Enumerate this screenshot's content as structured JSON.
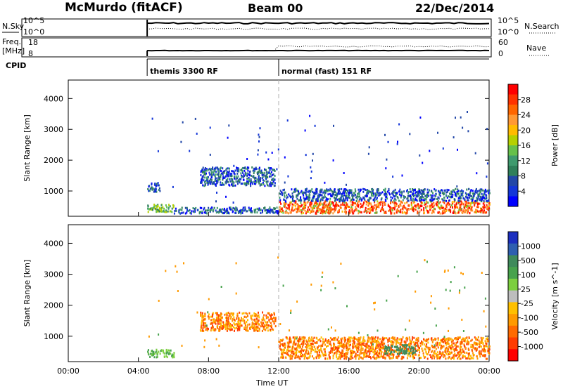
{
  "header": {
    "station": "McMurdo (fitACF)",
    "beam": "Beam 00",
    "date": "22/Dec/2014"
  },
  "top_panels": {
    "nsky_label": "N.Sky",
    "nsky_ticks": [
      "10^5",
      "10^0"
    ],
    "nsearch_label": "N.Search",
    "nsearch_ticks": [
      "10^5",
      "10^0"
    ],
    "freq_label": "Freq.",
    "freq_unit": "[MHz]",
    "freq_ticks": [
      "18",
      "8"
    ],
    "nave_label": "Nave",
    "nave_ticks": [
      "60",
      "0"
    ],
    "cpid_label": "CPID",
    "cpid_segments": [
      {
        "start_hour": 4.5,
        "name": "themis 3300 RF"
      },
      {
        "start_hour": 12.0,
        "name": "normal (fast) 151 RF"
      }
    ]
  },
  "chart_data": [
    {
      "type": "heatmap",
      "title": "",
      "xlabel": "Time UT",
      "ylabel": "Slant Range [km]",
      "x_range_hours": [
        0,
        24
      ],
      "x_ticks": [
        "00:00",
        "04:00",
        "08:00",
        "12:00",
        "16:00",
        "20:00",
        "00:00"
      ],
      "y_range_km": [
        180,
        4600
      ],
      "y_ticks": [
        "1000",
        "2000",
        "3000",
        "4000"
      ],
      "colorbar": {
        "label": "Power [dB]",
        "ticks": [
          "28",
          "24",
          "20",
          "16",
          "12",
          "8",
          "4"
        ],
        "colors": [
          "#ff0000",
          "#ff3300",
          "#ff6600",
          "#ff9933",
          "#ffbb00",
          "#b5d000",
          "#66c04a",
          "#3f9a6e",
          "#2f7f5a",
          "#2247a8",
          "#1436d8",
          "#0000ff"
        ]
      },
      "regions": [
        {
          "t0": 4.5,
          "t1": 6.0,
          "r0": 350,
          "r1": 600,
          "level": "mid"
        },
        {
          "t0": 4.5,
          "t1": 5.2,
          "r0": 1000,
          "r1": 1300,
          "level": "low"
        },
        {
          "t0": 7.5,
          "t1": 11.8,
          "r0": 1200,
          "r1": 1800,
          "level": "low"
        },
        {
          "t0": 6.0,
          "t1": 12.0,
          "r0": 300,
          "r1": 500,
          "level": "low"
        },
        {
          "t0": 12.0,
          "t1": 24.0,
          "r0": 300,
          "r1": 700,
          "level": "high"
        },
        {
          "t0": 12.0,
          "t1": 24.0,
          "r0": 700,
          "r1": 1100,
          "level": "low"
        }
      ]
    },
    {
      "type": "heatmap",
      "title": "",
      "xlabel": "Time UT",
      "ylabel": "Slant Range [km]",
      "x_range_hours": [
        0,
        24
      ],
      "x_ticks": [
        "00:00",
        "04:00",
        "08:00",
        "12:00",
        "16:00",
        "20:00",
        "00:00"
      ],
      "y_range_km": [
        180,
        4600
      ],
      "y_ticks": [
        "1000",
        "2000",
        "3000",
        "4000"
      ],
      "colorbar": {
        "label": "Velocity [m s^-1]",
        "ticks": [
          "1000",
          "500",
          "100",
          "25",
          "-25",
          "-100",
          "-500",
          "-1000"
        ],
        "colors": [
          "#1c2fbf",
          "#2e5fb0",
          "#3f8a5b",
          "#47a24c",
          "#7ccf3f",
          "#bdbdbd",
          "#ffc000",
          "#ff9a00",
          "#ff6a00",
          "#ff3c00",
          "#ff0000"
        ]
      },
      "regions": [
        {
          "t0": 4.5,
          "t1": 6.0,
          "r0": 350,
          "r1": 600,
          "level": "green"
        },
        {
          "t0": 7.5,
          "t1": 11.8,
          "r0": 1200,
          "r1": 1800,
          "level": "orange"
        },
        {
          "t0": 12.0,
          "t1": 24.0,
          "r0": 300,
          "r1": 1000,
          "level": "orange"
        },
        {
          "t0": 18.0,
          "t1": 19.8,
          "r0": 450,
          "r1": 750,
          "level": "darkgreen"
        }
      ]
    }
  ],
  "colors": {
    "axis": "#000000",
    "divider": "#b0b0b0"
  }
}
